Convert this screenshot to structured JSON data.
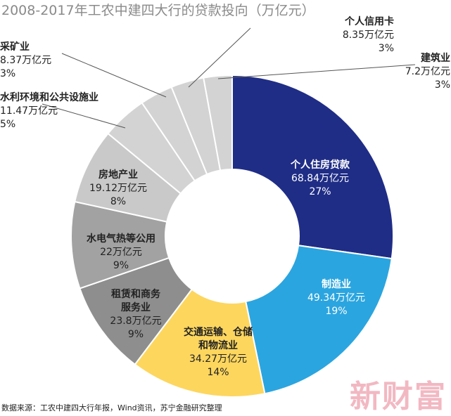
{
  "chart_data": {
    "type": "donut",
    "title": "2008-2017年工农中建四大行的贷款投向（万亿元）",
    "categories": [
      "个人住房贷款",
      "制造业",
      "交通运输、仓储和物流业",
      "租赁和商务服务业",
      "水电气热等公用",
      "房地产业",
      "水利环境和公共设施业",
      "采矿业",
      "个人信用卡",
      "建筑业"
    ],
    "values": [
      68.84,
      49.34,
      34.27,
      23.8,
      22,
      19.12,
      11.47,
      8.37,
      8.35,
      7.2
    ],
    "value_labels": [
      "68.84万亿元",
      "49.34万亿元",
      "34.27万亿元",
      "23.8万亿元",
      "22万亿元",
      "19.12万亿元",
      "11.47万亿元",
      "8.37万亿元",
      "8.35万亿元",
      "7.2万亿元"
    ],
    "percent_labels": [
      "27%",
      "19%",
      "14%",
      "9%",
      "9%",
      "8%",
      "5%",
      "3%",
      "3%",
      "3%"
    ],
    "colors": [
      "#1f2d86",
      "#2ba5df",
      "#fdd65e",
      "#8e8e8e",
      "#a2a2a2",
      "#c9c9c9",
      "#d3d3d3",
      "#d3d3d3",
      "#d3d3d3",
      "#d3d3d3"
    ],
    "source": "数据来源：工农中建四大行年报，Wind资讯，苏宁金融研究整理",
    "watermark": "新财富"
  }
}
